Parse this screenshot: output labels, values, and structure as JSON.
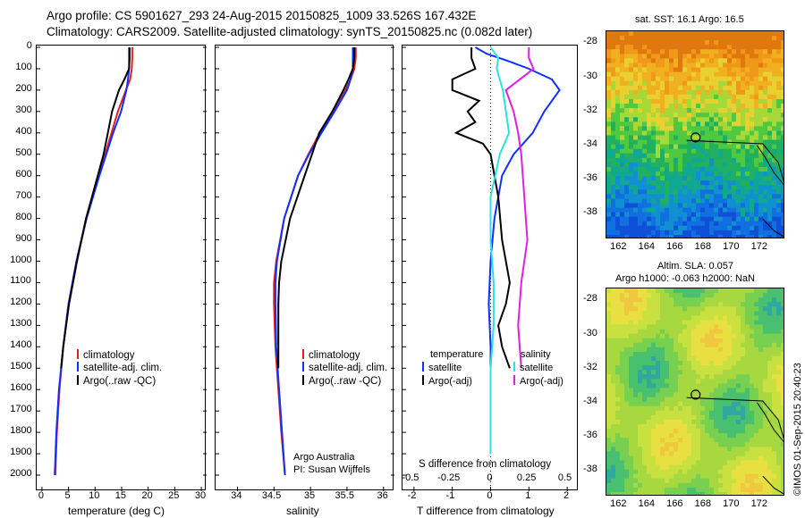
{
  "header": {
    "line1": "Argo profile: CS 5901627_293 24-Aug-2015 20150825_1009 33.526S 167.432E",
    "line2": "Climatology: CARS2009. Satellite-adjusted climatology: synTS_20150825.nc (0.082d later)"
  },
  "colors": {
    "climatology": "#e02020",
    "satellite": "#1030ff",
    "argo": "#000000",
    "sat_salinity": "#30e0e0",
    "argo_salinity": "#e020e0"
  },
  "depth_ticks": [
    "0",
    "100",
    "200",
    "300",
    "400",
    "500",
    "600",
    "700",
    "800",
    "900",
    "1000",
    "1100",
    "1200",
    "1300",
    "1400",
    "1500",
    "1600",
    "1700",
    "1800",
    "1900",
    "2000"
  ],
  "legend": {
    "climatology": "climatology",
    "satellite": "satellite-adj. clim.",
    "argo": "Argo(..raw -QC)"
  },
  "credit": {
    "line1": "Argo Australia",
    "line2": "PI: Susan Wijffels"
  },
  "diff_legend": {
    "temperature": "temperature",
    "salinity": "salinity",
    "satellite": "satellite",
    "argo": "Argo(-adj)"
  },
  "stamp": "©IMOS 01-Sep-2015 20:40:23",
  "chart_data": [
    {
      "type": "line",
      "xlabel": "temperature (deg C)",
      "ylabel": "",
      "xlim": [
        -1,
        31
      ],
      "ylim": [
        2000,
        0
      ],
      "xticks": [
        "0",
        "5",
        "10",
        "15",
        "20",
        "25",
        "30"
      ],
      "series": [
        {
          "name": "climatology",
          "depth": [
            0,
            50,
            100,
            150,
            200,
            300,
            400,
            500,
            600,
            800,
            1000,
            1200,
            1400,
            1600,
            1800,
            2000
          ],
          "x": [
            17.0,
            17.0,
            16.9,
            16.6,
            15.8,
            14.3,
            13.1,
            11.9,
            10.6,
            8.3,
            6.5,
            5.0,
            4.0,
            3.3,
            2.8,
            2.5
          ]
        },
        {
          "name": "satellite-adj. clim.",
          "depth": [
            0,
            50,
            100,
            150,
            200,
            300,
            400,
            500,
            600,
            800,
            1000,
            1200,
            1400,
            1600,
            1800,
            2000
          ],
          "x": [
            16.4,
            16.4,
            16.4,
            16.2,
            15.9,
            14.9,
            13.4,
            12.1,
            10.8,
            8.4,
            6.5,
            5.0,
            4.0,
            3.2,
            2.7,
            2.4
          ]
        },
        {
          "name": "Argo(..raw -QC)",
          "depth": [
            0,
            50,
            100,
            150,
            200,
            300,
            400,
            500,
            600,
            800,
            1000,
            1200,
            1400,
            1500
          ],
          "x": [
            16.5,
            16.5,
            16.4,
            15.5,
            14.5,
            13.2,
            12.4,
            11.6,
            10.5,
            8.3,
            6.6,
            5.1,
            4.0,
            3.6
          ]
        }
      ]
    },
    {
      "type": "line",
      "xlabel": "salinity",
      "ylabel": "",
      "xlim": [
        33.7,
        36.15
      ],
      "ylim": [
        2000,
        0
      ],
      "xticks": [
        "34",
        "34.5",
        "35",
        "35.5",
        "36"
      ],
      "series": [
        {
          "name": "climatology",
          "depth": [
            0,
            50,
            100,
            150,
            200,
            300,
            400,
            500,
            600,
            800,
            1000,
            1100,
            1200,
            1400,
            1600,
            1800,
            2000
          ],
          "x": [
            35.62,
            35.62,
            35.6,
            35.55,
            35.48,
            35.3,
            35.13,
            34.97,
            34.83,
            34.64,
            34.53,
            34.5,
            34.5,
            34.52,
            34.56,
            34.6,
            34.65
          ]
        },
        {
          "name": "satellite-adj. clim.",
          "depth": [
            0,
            50,
            100,
            150,
            200,
            300,
            400,
            500,
            600,
            800,
            1000,
            1100,
            1200,
            1400,
            1600,
            1800,
            2000
          ],
          "x": [
            35.58,
            35.58,
            35.58,
            35.55,
            35.5,
            35.33,
            35.15,
            34.98,
            34.83,
            34.64,
            34.54,
            34.52,
            34.52,
            34.53,
            34.57,
            34.61,
            34.65
          ]
        },
        {
          "name": "Argo(..raw -QC)",
          "depth": [
            0,
            50,
            100,
            150,
            200,
            300,
            400,
            500,
            600,
            800,
            1000,
            1100,
            1200,
            1400,
            1500
          ],
          "x": [
            35.6,
            35.6,
            35.58,
            35.52,
            35.45,
            35.3,
            35.12,
            35.02,
            34.92,
            34.72,
            34.6,
            34.57,
            34.56,
            34.56,
            34.56
          ]
        }
      ]
    },
    {
      "type": "line",
      "xlabel": "T difference from climatology",
      "x2label": "S difference from climatology",
      "xlim": [
        -2.3,
        2.3
      ],
      "ylim": [
        2000,
        0
      ],
      "xticks": [
        "-2",
        "-1",
        "0",
        "1",
        "2"
      ],
      "x2ticks": [
        "-0.5",
        "-0.25",
        "0",
        "0.25",
        "0.5"
      ],
      "series": [
        {
          "name": "satellite (T)",
          "depth": [
            0,
            30,
            60,
            100,
            150,
            200,
            250,
            300,
            400,
            500,
            600,
            800,
            1000,
            1200,
            1400,
            1600,
            1800,
            1900
          ],
          "x": [
            -0.4,
            -0.1,
            0.4,
            1.0,
            1.6,
            1.8,
            1.6,
            1.4,
            1.1,
            0.6,
            0.3,
            0.1,
            0.0,
            -0.05,
            0.0,
            0.0,
            0.0,
            0.0
          ]
        },
        {
          "name": "Argo(-adj) (T)",
          "depth": [
            0,
            50,
            100,
            150,
            200,
            250,
            300,
            350,
            400,
            450,
            500,
            600,
            700,
            900,
            1000,
            1100,
            1200,
            1300,
            1400,
            1500
          ],
          "x": [
            -0.5,
            -0.5,
            -0.4,
            -1.0,
            -1.0,
            -0.3,
            -0.6,
            -0.4,
            -0.9,
            -0.2,
            0.0,
            0.1,
            0.2,
            0.3,
            0.4,
            0.5,
            0.4,
            0.2,
            0.3,
            0.5
          ]
        },
        {
          "name": "satellite (S)",
          "depth": [
            0,
            50,
            100,
            200,
            300,
            400,
            500,
            700,
            900,
            1100,
            1300,
            1500,
            1700,
            1900
          ],
          "x": [
            0.0,
            0.05,
            0.04,
            0.08,
            0.1,
            0.12,
            0.06,
            0.0,
            0.0,
            0.02,
            0.02,
            0.0,
            0.0,
            0.0
          ]
        },
        {
          "name": "Argo(-adj) (S)",
          "depth": [
            0,
            50,
            100,
            200,
            300,
            400,
            500,
            700,
            900,
            1100,
            1300,
            1500
          ],
          "x": [
            0.25,
            0.25,
            0.28,
            0.1,
            0.15,
            0.18,
            0.2,
            0.22,
            0.24,
            0.2,
            0.18,
            0.2
          ]
        }
      ]
    },
    {
      "type": "heatmap",
      "title": "sat. SST: 16.1  Argo: 16.5",
      "xticks": [
        "162",
        "164",
        "166",
        "168",
        "170",
        "172"
      ],
      "yticks": [
        "-28",
        "-30",
        "-32",
        "-34",
        "-36",
        "-38"
      ],
      "marker": {
        "lon": 167.432,
        "lat": -33.526
      }
    },
    {
      "type": "heatmap",
      "title": "Altim. SLA: 0.057",
      "subtitle": "Argo h1000: -0.063  h2000: NaN",
      "xticks": [
        "162",
        "164",
        "166",
        "168",
        "170",
        "172"
      ],
      "yticks": [
        "-28",
        "-30",
        "-32",
        "-34",
        "-36",
        "-38"
      ],
      "marker": {
        "lon": 167.432,
        "lat": -33.526
      }
    }
  ]
}
